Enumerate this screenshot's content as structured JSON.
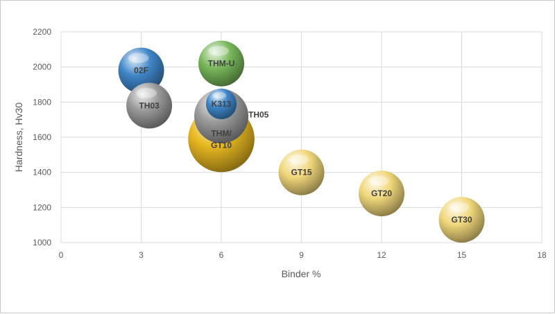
{
  "chart_data": {
    "type": "bubble",
    "title": "",
    "xlabel": "Binder %",
    "ylabel": "Hardness, Hv30",
    "xlim": [
      0,
      18
    ],
    "ylim": [
      1000,
      2200
    ],
    "xticks": [
      0,
      3,
      6,
      9,
      12,
      15,
      18
    ],
    "yticks": [
      1000,
      1200,
      1400,
      1600,
      1800,
      2000,
      2200
    ],
    "grid": true,
    "legend": "none",
    "points": [
      {
        "label": "02F",
        "x": 3,
        "y": 1980,
        "size": 1.0,
        "color": "#3f86c8"
      },
      {
        "label": "THM-U",
        "x": 6,
        "y": 2020,
        "size": 1.0,
        "color": "#78b85a"
      },
      {
        "label": "TH03",
        "x": 3.3,
        "y": 1780,
        "size": 1.0,
        "color": "#9a9a9a"
      },
      {
        "label": "TH05",
        "x": 6,
        "y": 1720,
        "size": 1.4,
        "color": "#9a9a9a"
      },
      {
        "label": "THM/\nGT10",
        "x": 6,
        "y": 1590,
        "size": 2.1,
        "color": "#e8b820"
      },
      {
        "label": "K313",
        "x": 6,
        "y": 1790,
        "size": 0.45,
        "color": "#3f86c8"
      },
      {
        "label": "GT15",
        "x": 9,
        "y": 1400,
        "size": 1.0,
        "color": "#f0d77a"
      },
      {
        "label": "GT20",
        "x": 12,
        "y": 1280,
        "size": 1.0,
        "color": "#f0d77a"
      },
      {
        "label": "GT30",
        "x": 15,
        "y": 1130,
        "size": 1.0,
        "color": "#f0d77a"
      }
    ]
  }
}
